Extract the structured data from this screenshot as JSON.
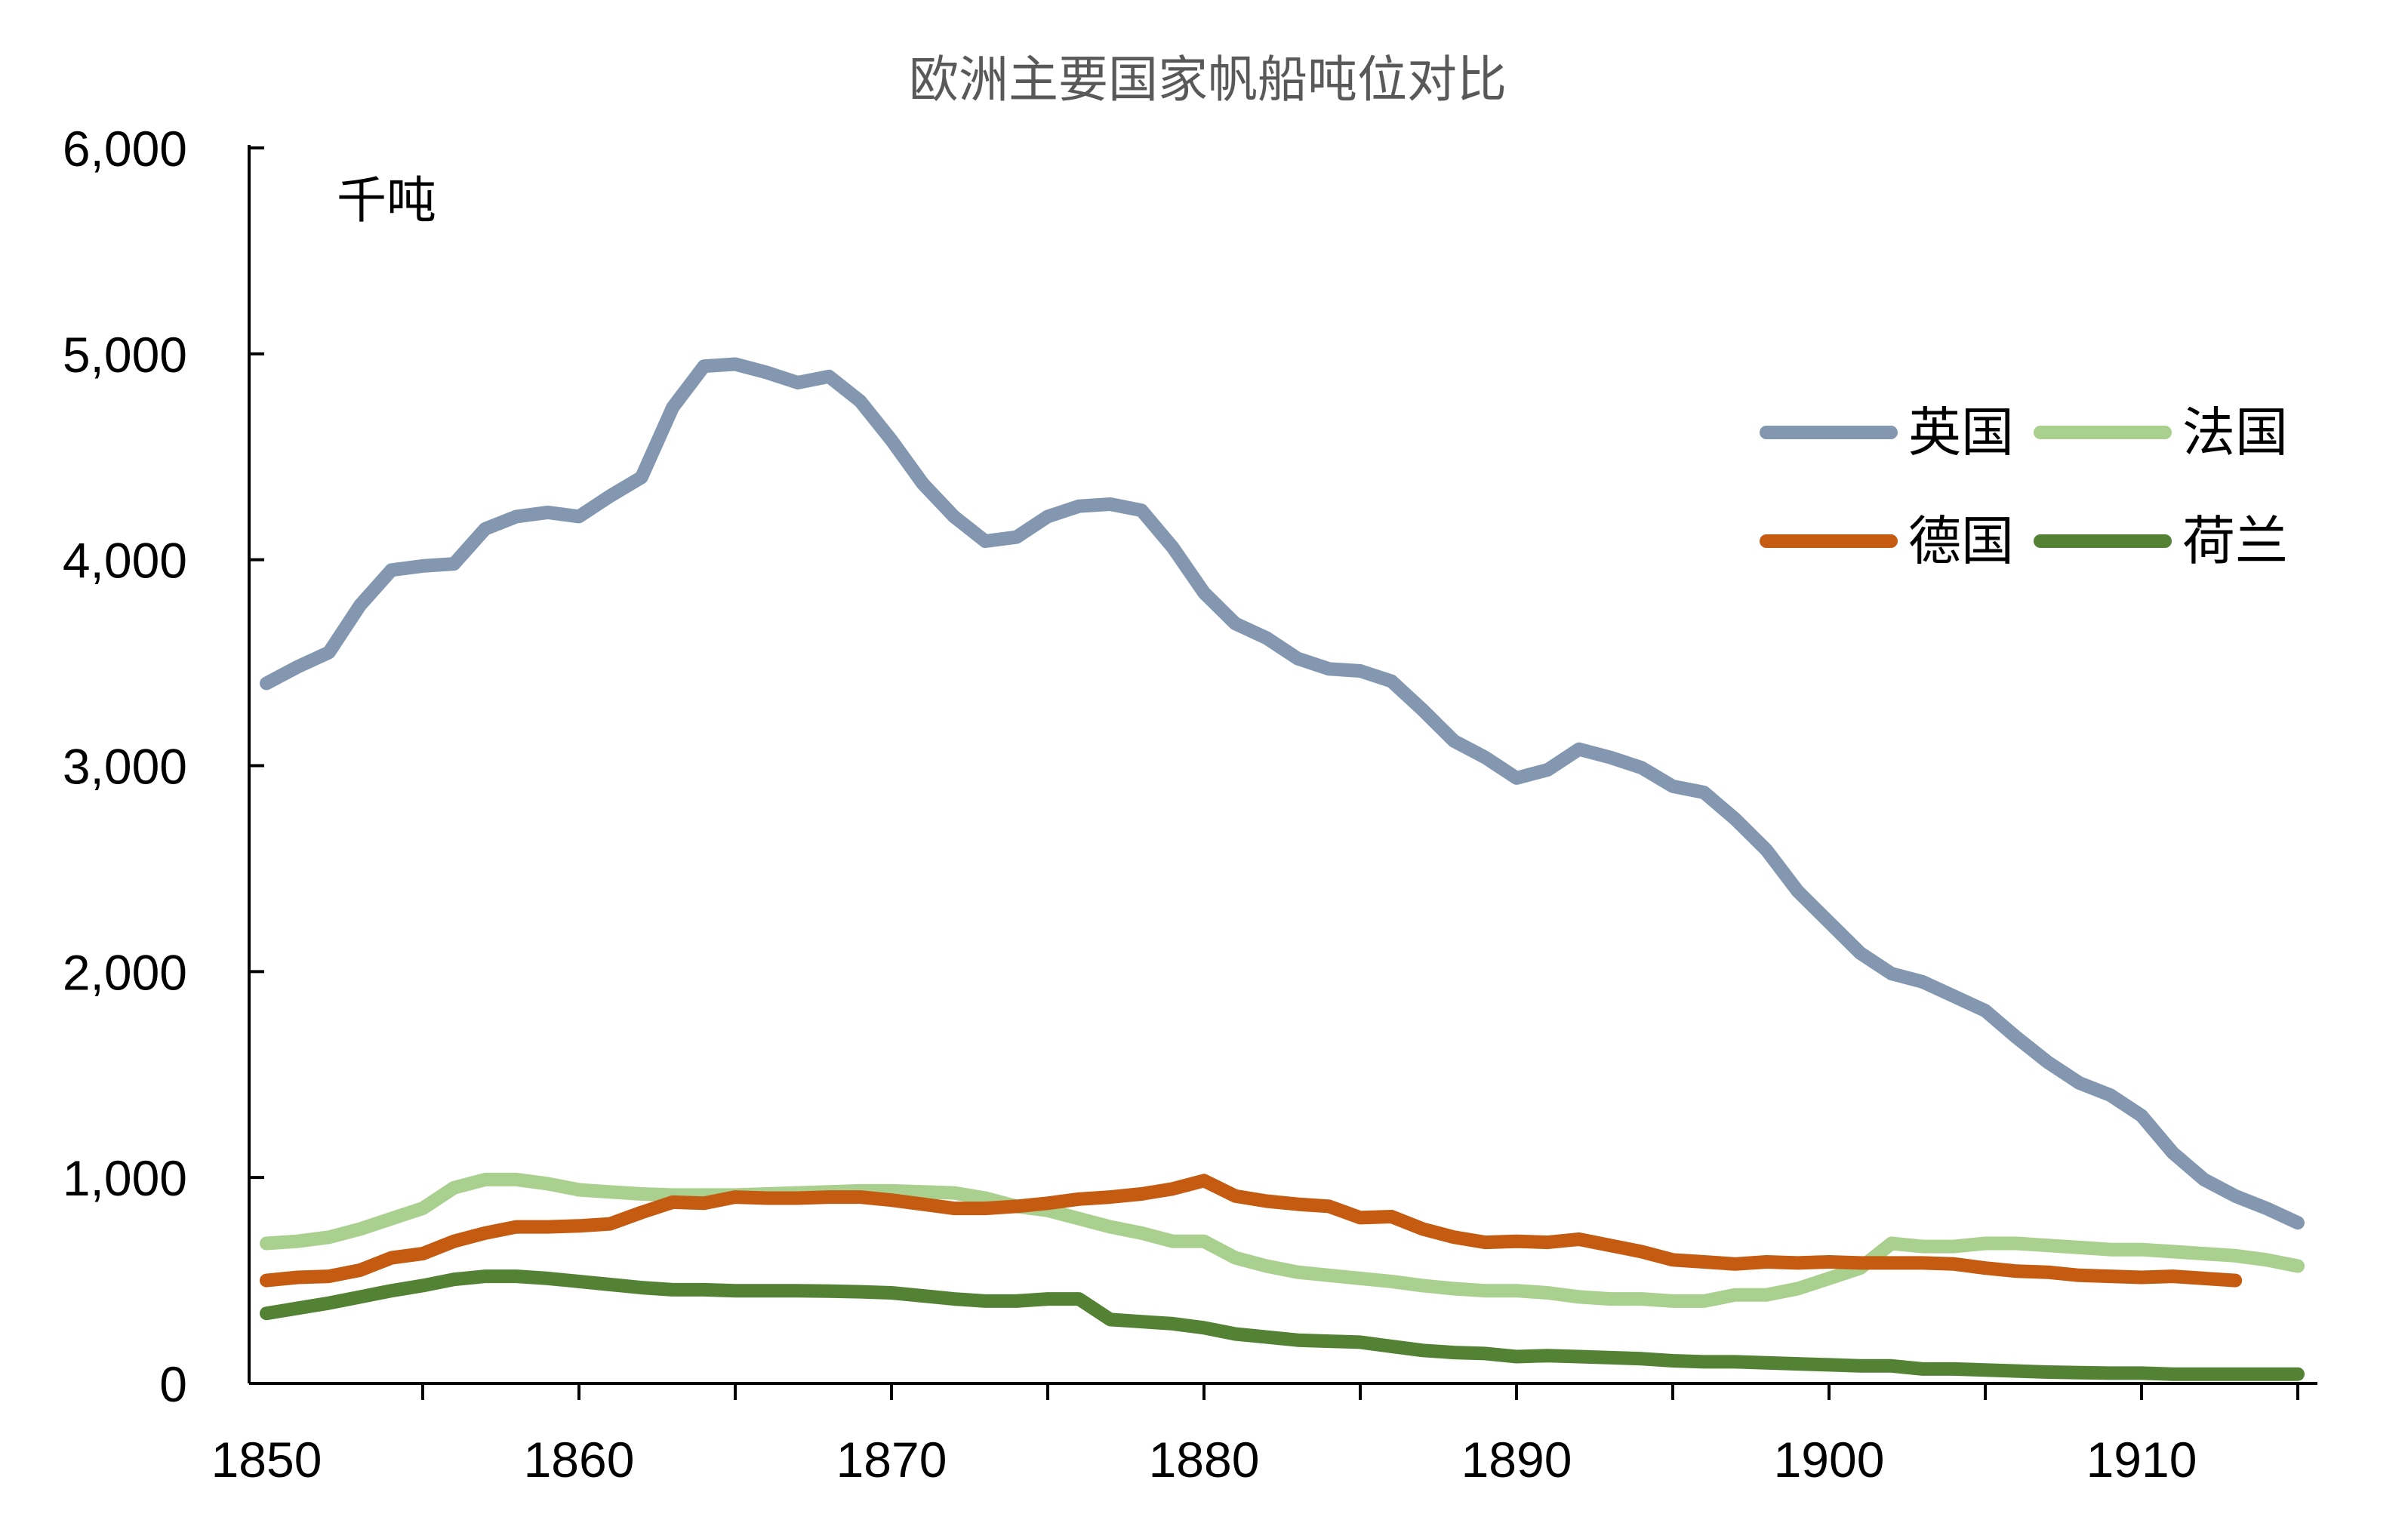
{
  "chart_data": {
    "type": "line",
    "title": "欧洲主要国家帆船吨位对比",
    "ylabel": "千吨",
    "xlabel": "",
    "ylim": [
      0,
      6000
    ],
    "xlim": [
      1850,
      1916
    ],
    "yticks": [
      "6,000",
      "5,000",
      "4,000",
      "3,000",
      "2,000",
      "1,000",
      "0"
    ],
    "ytick_values": [
      6000,
      5000,
      4000,
      3000,
      2000,
      1000,
      0
    ],
    "xticks": [
      "1850",
      "1860",
      "1870",
      "1880",
      "1890",
      "1900",
      "1910"
    ],
    "xtick_values": [
      1850,
      1860,
      1870,
      1880,
      1890,
      1900,
      1910
    ],
    "legend_position": "upper-right",
    "series": [
      {
        "name": "英国",
        "color": "#8497b0",
        "x": [
          1850,
          1851,
          1852,
          1853,
          1854,
          1855,
          1856,
          1857,
          1858,
          1859,
          1860,
          1861,
          1862,
          1863,
          1864,
          1865,
          1866,
          1867,
          1868,
          1869,
          1870,
          1871,
          1872,
          1873,
          1874,
          1875,
          1876,
          1877,
          1878,
          1879,
          1880,
          1881,
          1882,
          1883,
          1884,
          1885,
          1886,
          1887,
          1888,
          1889,
          1890,
          1891,
          1892,
          1893,
          1894,
          1895,
          1896,
          1897,
          1898,
          1899,
          1900,
          1901,
          1902,
          1903,
          1904,
          1905,
          1906,
          1907,
          1908,
          1909,
          1910,
          1911,
          1912,
          1913,
          1914,
          1915
        ],
        "values": [
          3400,
          3480,
          3550,
          3780,
          3950,
          3970,
          3980,
          4150,
          4210,
          4230,
          4210,
          4310,
          4400,
          4740,
          4940,
          4950,
          4910,
          4860,
          4890,
          4770,
          4580,
          4370,
          4210,
          4090,
          4110,
          4210,
          4260,
          4270,
          4240,
          4060,
          3840,
          3690,
          3620,
          3520,
          3470,
          3460,
          3410,
          3270,
          3120,
          3040,
          2940,
          2980,
          3080,
          3040,
          2990,
          2900,
          2870,
          2740,
          2590,
          2390,
          2240,
          2090,
          1990,
          1950,
          1880,
          1810,
          1680,
          1560,
          1460,
          1400,
          1300,
          1120,
          990,
          910,
          850,
          780
        ]
      },
      {
        "name": "法国",
        "color": "#a9d08e",
        "x": [
          1850,
          1851,
          1852,
          1853,
          1854,
          1855,
          1856,
          1857,
          1858,
          1859,
          1860,
          1861,
          1862,
          1863,
          1864,
          1865,
          1866,
          1867,
          1868,
          1869,
          1870,
          1871,
          1872,
          1873,
          1874,
          1875,
          1876,
          1877,
          1878,
          1879,
          1880,
          1881,
          1882,
          1883,
          1884,
          1885,
          1886,
          1887,
          1888,
          1889,
          1890,
          1891,
          1892,
          1893,
          1894,
          1895,
          1896,
          1897,
          1898,
          1899,
          1900,
          1901,
          1902,
          1903,
          1904,
          1905,
          1906,
          1907,
          1908,
          1909,
          1910,
          1911,
          1912,
          1913,
          1914,
          1915
        ],
        "values": [
          680,
          690,
          710,
          750,
          800,
          850,
          950,
          990,
          990,
          970,
          940,
          930,
          920,
          915,
          915,
          915,
          920,
          925,
          930,
          935,
          935,
          930,
          925,
          900,
          860,
          840,
          800,
          760,
          730,
          690,
          690,
          610,
          570,
          540,
          525,
          510,
          495,
          475,
          460,
          450,
          450,
          440,
          420,
          410,
          410,
          400,
          400,
          430,
          430,
          460,
          510,
          560,
          680,
          665,
          665,
          680,
          680,
          670,
          660,
          650,
          650,
          640,
          630,
          620,
          600,
          570
        ]
      },
      {
        "name": "德国",
        "color": "#c55a11",
        "x": [
          1850,
          1851,
          1852,
          1853,
          1854,
          1855,
          1856,
          1857,
          1858,
          1859,
          1860,
          1861,
          1862,
          1863,
          1864,
          1865,
          1866,
          1867,
          1868,
          1869,
          1870,
          1871,
          1872,
          1873,
          1874,
          1875,
          1876,
          1877,
          1878,
          1879,
          1880,
          1881,
          1882,
          1883,
          1884,
          1885,
          1886,
          1887,
          1888,
          1889,
          1890,
          1891,
          1892,
          1893,
          1894,
          1895,
          1896,
          1897,
          1898,
          1899,
          1900,
          1901,
          1902,
          1903,
          1904,
          1905,
          1906,
          1907,
          1908,
          1909,
          1910,
          1911,
          1912,
          1913
        ],
        "values": [
          500,
          515,
          520,
          550,
          610,
          630,
          690,
          730,
          760,
          760,
          765,
          775,
          830,
          880,
          875,
          905,
          900,
          900,
          905,
          905,
          890,
          870,
          850,
          850,
          860,
          875,
          895,
          905,
          920,
          945,
          985,
          910,
          885,
          870,
          860,
          805,
          810,
          750,
          710,
          685,
          690,
          685,
          700,
          670,
          640,
          600,
          590,
          580,
          590,
          585,
          590,
          585,
          585,
          585,
          580,
          560,
          545,
          540,
          525,
          520,
          515,
          520,
          510,
          500
        ]
      },
      {
        "name": "荷兰",
        "color": "#548235",
        "x": [
          1850,
          1851,
          1852,
          1853,
          1854,
          1855,
          1856,
          1857,
          1858,
          1859,
          1860,
          1861,
          1862,
          1863,
          1864,
          1865,
          1866,
          1867,
          1868,
          1869,
          1870,
          1871,
          1872,
          1873,
          1874,
          1875,
          1876,
          1877,
          1878,
          1879,
          1880,
          1881,
          1882,
          1883,
          1884,
          1885,
          1886,
          1887,
          1888,
          1889,
          1890,
          1891,
          1892,
          1893,
          1894,
          1895,
          1896,
          1897,
          1898,
          1899,
          1900,
          1901,
          1902,
          1903,
          1904,
          1905,
          1906,
          1907,
          1908,
          1909,
          1910,
          1911,
          1912,
          1913,
          1914,
          1915
        ],
        "values": [
          340,
          365,
          390,
          420,
          450,
          475,
          505,
          520,
          520,
          510,
          495,
          480,
          465,
          455,
          455,
          450,
          450,
          450,
          448,
          445,
          440,
          425,
          410,
          400,
          400,
          410,
          410,
          310,
          300,
          290,
          270,
          240,
          225,
          210,
          205,
          200,
          180,
          160,
          150,
          145,
          130,
          135,
          130,
          125,
          120,
          110,
          105,
          105,
          100,
          95,
          90,
          85,
          85,
          70,
          70,
          65,
          60,
          55,
          52,
          50,
          50,
          45,
          45,
          45,
          45,
          45
        ]
      }
    ]
  }
}
